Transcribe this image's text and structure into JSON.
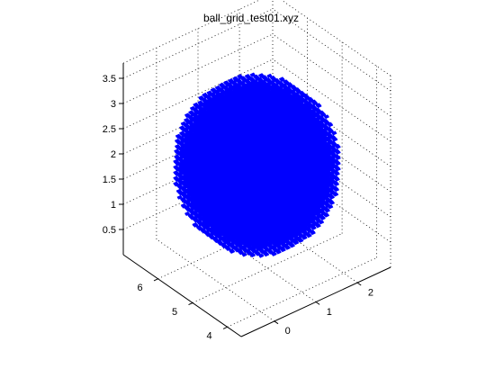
{
  "chart_data": {
    "type": "scatter",
    "projection": "3d",
    "title": "ball_grid_test01.xyz",
    "xlabel": "",
    "ylabel": "",
    "zlabel": "",
    "grid": true,
    "legend": "none",
    "marker": "line",
    "color": "#0000ff",
    "xlim": [
      -0.8,
      2.8
    ],
    "ylim": [
      3.6,
      7.0
    ],
    "zlim": [
      0,
      3.8
    ],
    "x_ticks": [
      "0",
      "1",
      "2"
    ],
    "y_ticks": [
      "4",
      "5",
      "6"
    ],
    "z_ticks": [
      "0.5",
      "1",
      "1.5",
      "2",
      "2.5",
      "3",
      "3.5"
    ],
    "ball": {
      "center": [
        1.0,
        5.3,
        1.9
      ],
      "radius": 1.55,
      "grid_spacing": 0.11
    },
    "series": [
      {
        "shape": "points on a regular grid inside a sphere"
      }
    ]
  }
}
